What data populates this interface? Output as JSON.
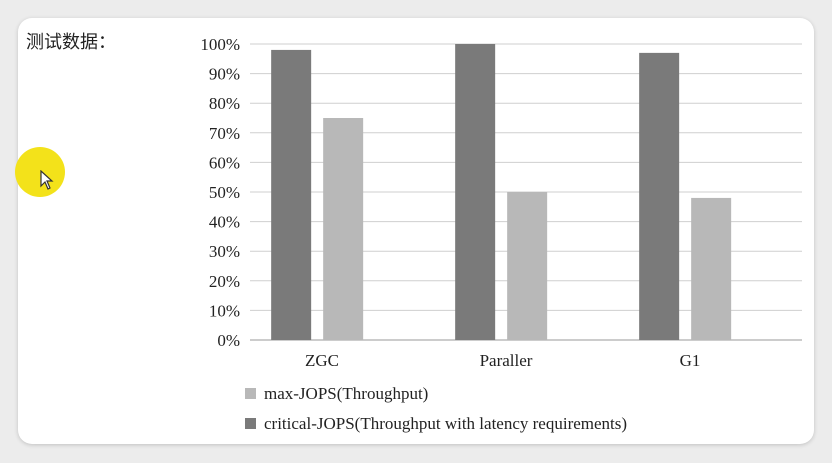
{
  "heading": "测试数据：",
  "chart_data": {
    "type": "bar",
    "categories": [
      "ZGC",
      "Paraller",
      "G1"
    ],
    "series": [
      {
        "name": "critical-JOPS(Throughput with latency requirements)",
        "values": [
          98,
          100,
          97
        ],
        "color": "#7a7a7a"
      },
      {
        "name": "max-JOPS(Throughput)",
        "values": [
          75,
          50,
          48
        ],
        "color": "#b8b8b8"
      }
    ],
    "ylim": [
      0,
      100
    ],
    "yticks": [
      "0%",
      "10%",
      "20%",
      "30%",
      "40%",
      "50%",
      "60%",
      "70%",
      "80%",
      "90%",
      "100%"
    ],
    "legend": [
      {
        "label": "max-JOPS(Throughput)",
        "color": "#b8b8b8"
      },
      {
        "label": "critical-JOPS(Throughput with latency requirements)",
        "color": "#7a7a7a"
      }
    ],
    "grid": true,
    "legend_position": "bottom"
  },
  "icons": {
    "cursor": "mouse-pointer-icon",
    "highlight": "cursor-highlight-icon"
  }
}
